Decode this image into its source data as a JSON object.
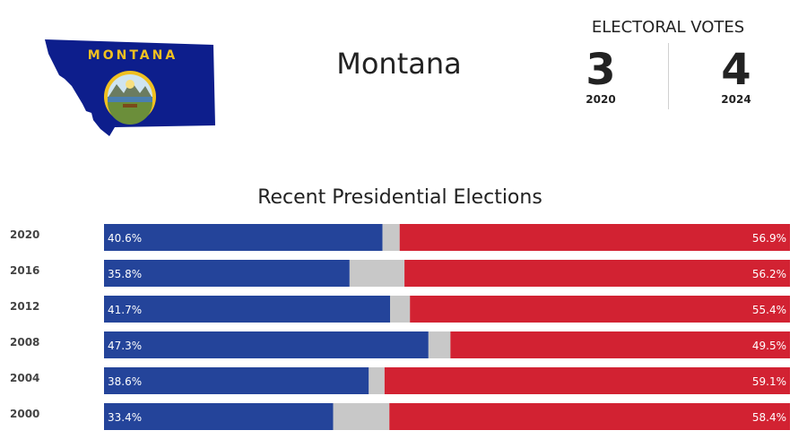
{
  "header": {
    "state_name": "Montana",
    "flag_text": "MONTANA",
    "electoral_votes_label": "ELECTORAL VOTES"
  },
  "electoral_votes": [
    {
      "value": "3",
      "year": "2020"
    },
    {
      "value": "4",
      "year": "2024"
    }
  ],
  "colors": {
    "democrat": "#24449a",
    "republican": "#d22232",
    "other": "#c8c8c8",
    "flag_blue": "#0d1e8c",
    "flag_gold": "#f0c020"
  },
  "chart_data": {
    "type": "bar",
    "title": "Recent Presidential Elections",
    "orientation": "horizontal-stacked",
    "categories": [
      "2020",
      "2016",
      "2012",
      "2008",
      "2004",
      "2000"
    ],
    "series": [
      {
        "values": [
          40.6,
          35.8,
          41.7,
          47.3,
          38.6,
          33.4
        ]
      },
      {
        "values": [
          56.9,
          56.2,
          55.4,
          49.5,
          59.1,
          58.4
        ]
      }
    ],
    "labels": {
      "democrat": [
        "40.6%",
        "35.8%",
        "41.7%",
        "47.3%",
        "38.6%",
        "33.4%"
      ],
      "republican": [
        "56.9%",
        "56.2%",
        "55.4%",
        "49.5%",
        "59.1%",
        "58.4%"
      ]
    },
    "xlim": [
      0,
      100
    ]
  }
}
